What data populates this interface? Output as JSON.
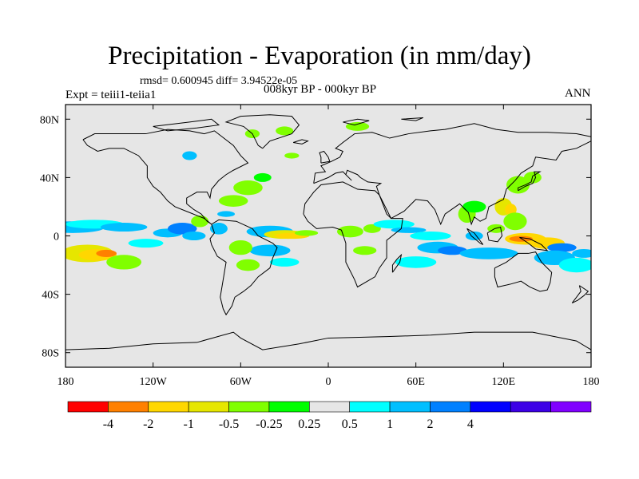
{
  "title": "Precipitation - Evaporation (in mm/day)",
  "stats": "rmsd= 0.600945 diff= 3.94522e-05",
  "experiment": "Expt = teiii1-teiia1",
  "period": "008kyr BP - 000kyr BP",
  "season": "ANN",
  "map": {
    "projection": "cylindrical-equidistant",
    "lon_range": [
      -180,
      180
    ],
    "lat_range": [
      -90,
      90
    ],
    "background_color": "#e6e6e6",
    "lat_ticks": [
      {
        "value": 80,
        "label": "80N"
      },
      {
        "value": 40,
        "label": "40N"
      },
      {
        "value": 0,
        "label": "0"
      },
      {
        "value": -40,
        "label": "40S"
      },
      {
        "value": -80,
        "label": "80S"
      }
    ],
    "lon_ticks": [
      {
        "value": -180,
        "label": "180"
      },
      {
        "value": -120,
        "label": "120W"
      },
      {
        "value": -60,
        "label": "60W"
      },
      {
        "value": 0,
        "label": "0"
      },
      {
        "value": 60,
        "label": "60E"
      },
      {
        "value": 120,
        "label": "120E"
      },
      {
        "value": 180,
        "label": "180"
      }
    ]
  },
  "colorbar": {
    "colors": [
      "#ff0000",
      "#ff8000",
      "#ffd700",
      "#e6e600",
      "#80ff00",
      "#00ff00",
      "#e6e6e6",
      "#00ffff",
      "#00bfff",
      "#0080ff",
      "#0000ff",
      "#3c00e6",
      "#8000ff"
    ],
    "labels": [
      "-4",
      "-2",
      "-1",
      "-0.5",
      "-0.25",
      "0.25",
      "0.5",
      "1",
      "2",
      "4"
    ]
  },
  "chart_data": {
    "type": "heatmap",
    "title": "Precipitation - Evaporation (in mm/day)",
    "variable": "Precipitation - Evaporation",
    "units": "mm/day",
    "color_levels": [
      -4,
      -2,
      -1,
      -0.5,
      -0.25,
      0.25,
      0.5,
      1,
      2,
      4
    ],
    "regions": [
      {
        "lon": -160,
        "lat": -12,
        "value": -4
      },
      {
        "lon": -150,
        "lat": -10,
        "value": -2
      },
      {
        "lon": -140,
        "lat": -15,
        "value": -1
      },
      {
        "lon": -130,
        "lat": 5,
        "value": 1
      },
      {
        "lon": -120,
        "lat": -5,
        "value": 0.5
      },
      {
        "lon": -90,
        "lat": 0,
        "value": 2
      },
      {
        "lon": -40,
        "lat": 3,
        "value": 1
      },
      {
        "lon": -30,
        "lat": 0,
        "value": -2
      },
      {
        "lon": -20,
        "lat": 2,
        "value": -1
      },
      {
        "lon": -40,
        "lat": -12,
        "value": 1
      },
      {
        "lon": -55,
        "lat": -8,
        "value": -0.5
      },
      {
        "lon": -70,
        "lat": 25,
        "value": -0.5
      },
      {
        "lon": -50,
        "lat": 35,
        "value": -0.5
      },
      {
        "lon": 20,
        "lat": 5,
        "value": -0.5
      },
      {
        "lon": 60,
        "lat": 5,
        "value": 1
      },
      {
        "lon": 80,
        "lat": -10,
        "value": 1
      },
      {
        "lon": 100,
        "lat": 15,
        "value": -0.5
      },
      {
        "lon": 130,
        "lat": 20,
        "value": -1
      },
      {
        "lon": 130,
        "lat": 0,
        "value": -4
      },
      {
        "lon": 150,
        "lat": -5,
        "value": -2
      },
      {
        "lon": 160,
        "lat": -20,
        "value": 0.5
      },
      {
        "lon": 140,
        "lat": 40,
        "value": -0.5
      }
    ]
  }
}
